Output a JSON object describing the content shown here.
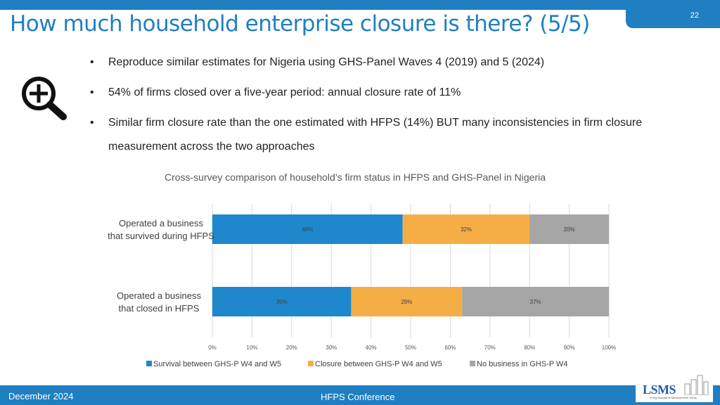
{
  "slide": {
    "title": "How much household enterprise closure is there? (5/5)",
    "page_number": "22",
    "bullets": [
      "Reproduce similar estimates for Nigeria using GHS-Panel Waves 4 (2019) and 5 (2024)",
      "54% of firms closed over a five-year period:  annual closure rate of 11%",
      "Similar firm closure rate than the one estimated with HFPS (14%) BUT many inconsistencies in firm closure measurement across the two approaches"
    ],
    "icon": "zoom-in-icon"
  },
  "chart_data": {
    "type": "bar",
    "orientation": "horizontal",
    "stacked": true,
    "title": "Cross-survey comparison of household’s firm status in HFPS and GHS-Panel in Nigeria",
    "categories": [
      "Operated a business that survived during  HFPS",
      "Operated a business that closed in HFPS"
    ],
    "category_label_lines": [
      [
        "Operated a business",
        "that survived during  HFPS"
      ],
      [
        "Operated a business",
        "that closed in HFPS"
      ]
    ],
    "series": [
      {
        "name": "Survival between GHS-P W4 and W5",
        "values": [
          48,
          35
        ],
        "labels": [
          "48%",
          "35%"
        ],
        "color": "#1f88cc"
      },
      {
        "name": "Closure between GHS-P W4 and W5",
        "values": [
          32,
          28
        ],
        "labels": [
          "32%",
          "28%"
        ],
        "color": "#f5ae45"
      },
      {
        "name": "No business in GHS-P W4",
        "values": [
          20,
          37
        ],
        "labels": [
          "20%",
          "37%"
        ],
        "color": "#a5a5a5"
      }
    ],
    "xlim": [
      0,
      100
    ],
    "xticks": [
      "0%",
      "10%",
      "20%",
      "30%",
      "40%",
      "50%",
      "60%",
      "70%",
      "80%",
      "90%",
      "100%"
    ],
    "grid": true,
    "legend_position": "bottom"
  },
  "footer": {
    "date": "December 2024",
    "center": "HFPS Conference",
    "logo": "LSMS",
    "logo_subtitle": "Living Standards Measurement Study"
  },
  "colors": {
    "brand_blue": "#1f7fc1"
  }
}
